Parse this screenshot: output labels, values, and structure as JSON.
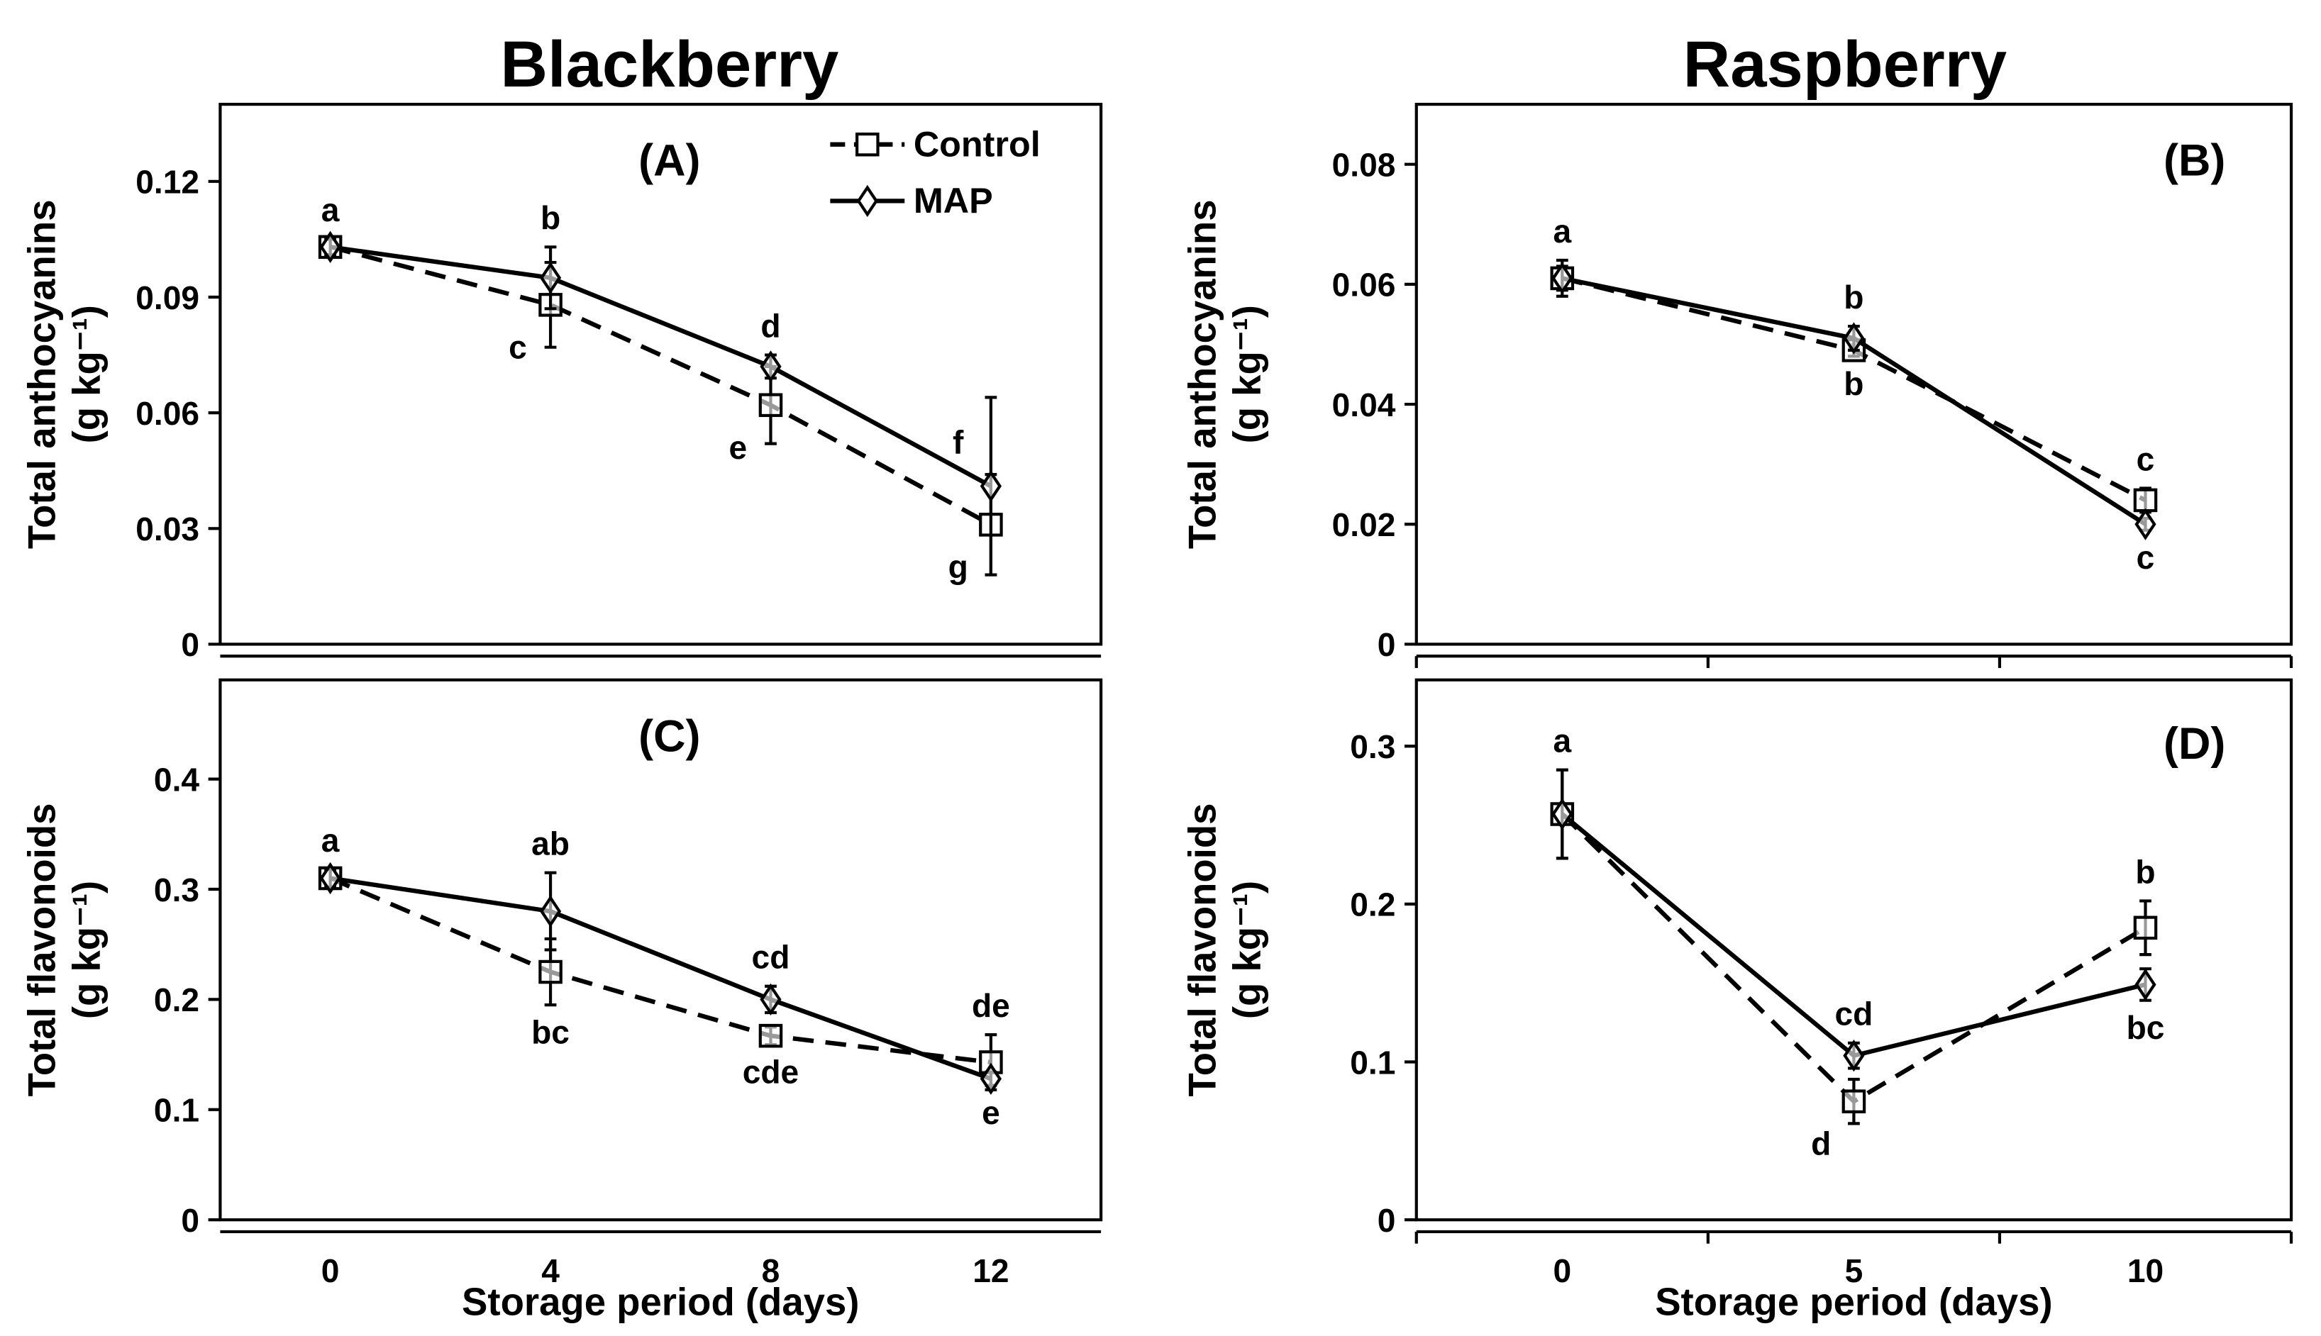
{
  "column_titles": [
    "Blackberry",
    "Raspberry"
  ],
  "legend": [
    {
      "name": "Control",
      "style": "dashed",
      "marker": "square"
    },
    {
      "name": "MAP",
      "style": "solid",
      "marker": "diamond"
    }
  ],
  "chart_data": [
    {
      "type": "line",
      "panel": "(A)",
      "crop": "Blackberry",
      "ylabel": "Total anthocyanins",
      "yunit": "(g kg⁻¹)",
      "xlabel": "",
      "x": [
        0,
        4,
        8,
        12
      ],
      "xticks": [
        "0",
        "4",
        "8",
        "12"
      ],
      "xlim": [
        -2,
        14
      ],
      "ylim": [
        0,
        0.14
      ],
      "yticks": [
        0,
        0.03,
        0.06,
        0.09,
        0.12
      ],
      "ytick_labels": [
        "0",
        "0.03",
        "0.06",
        "0.09",
        "0.12"
      ],
      "series": [
        {
          "name": "Control",
          "values": [
            0.103,
            0.088,
            0.062,
            0.031
          ],
          "errors": [
            0.002,
            0.011,
            0.01,
            0.013
          ],
          "letters": [
            "",
            "c",
            "e",
            "g"
          ],
          "letter_pos": [
            "",
            "below-left",
            "below-left",
            "below-left"
          ]
        },
        {
          "name": "MAP",
          "values": [
            0.103,
            0.095,
            0.072,
            0.041
          ],
          "errors": [
            0.002,
            0.008,
            0.003,
            0.023
          ],
          "letters": [
            "a",
            "b",
            "d",
            "f"
          ],
          "letter_pos": [
            "above",
            "above",
            "above",
            "above-left"
          ]
        }
      ]
    },
    {
      "type": "line",
      "panel": "(B)",
      "crop": "Raspberry",
      "ylabel": "Total anthocyanins",
      "yunit": "(g kg⁻¹)",
      "xlabel": "",
      "x": [
        0,
        5,
        10
      ],
      "xticks": [
        "0",
        "5",
        "10"
      ],
      "xlim": [
        -2.5,
        12.5
      ],
      "ylim": [
        0,
        0.09
      ],
      "yticks": [
        0,
        0.02,
        0.04,
        0.06,
        0.08
      ],
      "ytick_labels": [
        "0",
        "0.02",
        "0.04",
        "0.06",
        "0.08"
      ],
      "series": [
        {
          "name": "Control",
          "values": [
            0.061,
            0.049,
            0.024
          ],
          "errors": [
            0.002,
            0.001,
            0.002
          ],
          "letters": [
            "",
            "b",
            "c"
          ],
          "letter_pos": [
            "",
            "below",
            "above"
          ]
        },
        {
          "name": "MAP",
          "values": [
            0.061,
            0.051,
            0.02
          ],
          "errors": [
            0.003,
            0.002,
            0.001
          ],
          "letters": [
            "a",
            "b",
            "c"
          ],
          "letter_pos": [
            "above",
            "above",
            "below"
          ]
        }
      ]
    },
    {
      "type": "line",
      "panel": "(C)",
      "crop": "Blackberry",
      "ylabel": "Total flavonoids",
      "yunit": "(g kg⁻¹)",
      "xlabel": "Storage period (days)",
      "x": [
        0,
        4,
        8,
        12
      ],
      "xticks": [
        "0",
        "4",
        "8",
        "12"
      ],
      "xlim": [
        -2,
        14
      ],
      "ylim": [
        0,
        0.49
      ],
      "yticks": [
        0,
        0.1,
        0.2,
        0.3,
        0.4
      ],
      "ytick_labels": [
        "0",
        "0.1",
        "0.2",
        "0.3",
        "0.4"
      ],
      "series": [
        {
          "name": "Control",
          "values": [
            0.31,
            0.225,
            0.167,
            0.143
          ],
          "errors": [
            0.008,
            0.03,
            0.008,
            0.025
          ],
          "letters": [
            "",
            "bc",
            "cde",
            "de"
          ],
          "letter_pos": [
            "",
            "below",
            "below",
            "above"
          ]
        },
        {
          "name": "MAP",
          "values": [
            0.31,
            0.28,
            0.2,
            0.128
          ],
          "errors": [
            0.008,
            0.035,
            0.012,
            0.006
          ],
          "letters": [
            "a",
            "ab",
            "cd",
            "e"
          ],
          "letter_pos": [
            "above",
            "above",
            "above",
            "below"
          ]
        }
      ]
    },
    {
      "type": "line",
      "panel": "(D)",
      "crop": "Raspberry",
      "ylabel": "Total flavonoids",
      "yunit": "(g kg⁻¹)",
      "xlabel": "Storage period (days)",
      "x": [
        0,
        5,
        10
      ],
      "xticks": [
        "0",
        "5",
        "10"
      ],
      "xlim": [
        -2.5,
        12.5
      ],
      "ylim": [
        0,
        0.342
      ],
      "yticks": [
        0,
        0.1,
        0.2,
        0.3
      ],
      "ytick_labels": [
        "0",
        "0.1",
        "0.2",
        "0.3"
      ],
      "series": [
        {
          "name": "Control",
          "values": [
            0.257,
            0.075,
            0.185
          ],
          "errors": [
            0.028,
            0.014,
            0.017
          ],
          "letters": [
            "",
            "d",
            "b"
          ],
          "letter_pos": [
            "",
            "below-left",
            "above"
          ]
        },
        {
          "name": "MAP",
          "values": [
            0.257,
            0.104,
            0.149
          ],
          "errors": [
            0.028,
            0.008,
            0.01
          ],
          "letters": [
            "a",
            "cd",
            "bc"
          ],
          "letter_pos": [
            "above",
            "above",
            "below"
          ]
        }
      ]
    }
  ]
}
